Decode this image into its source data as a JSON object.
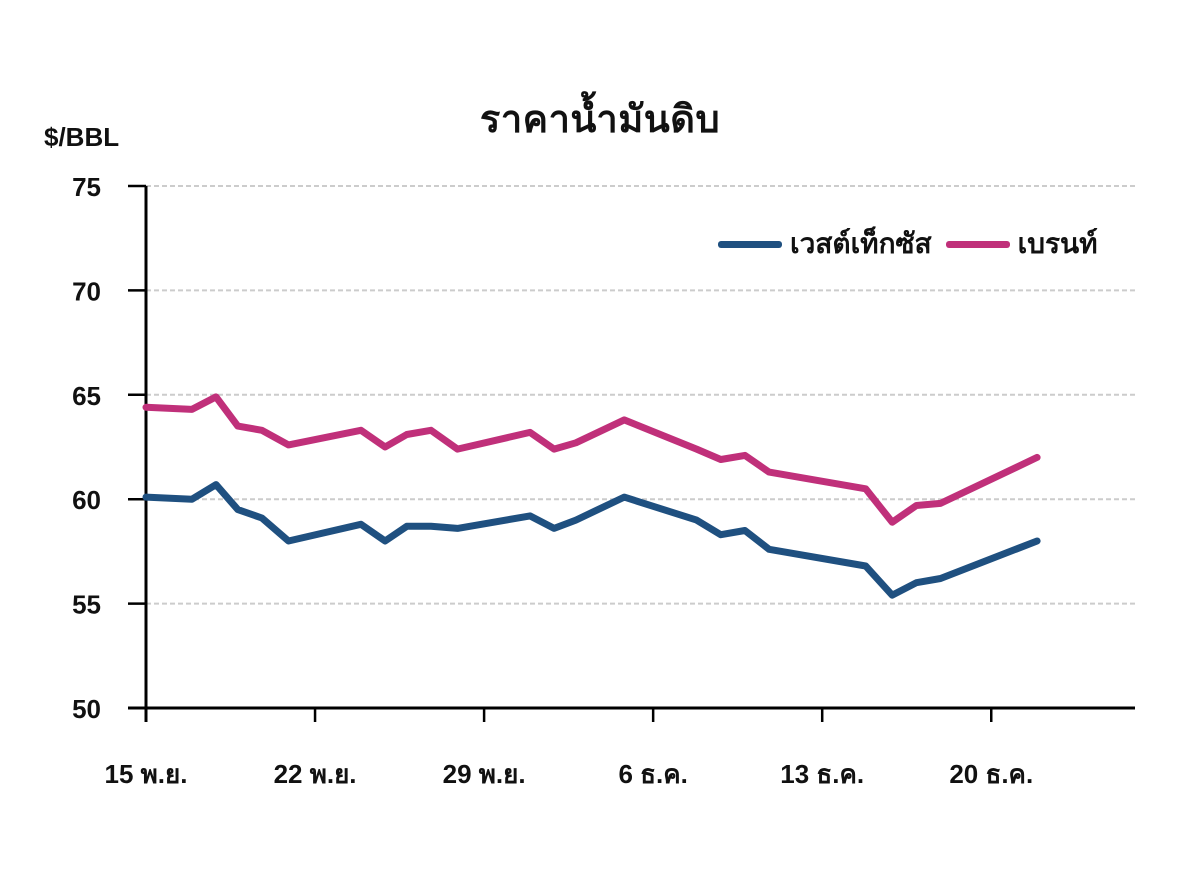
{
  "chart_data": {
    "type": "line",
    "title": "ราคาน้ำมันดิบ",
    "xlabel": "",
    "ylabel": "$/BBL",
    "ylim": [
      50,
      75
    ],
    "yticks": [
      50,
      55,
      60,
      65,
      70,
      75
    ],
    "grid": true,
    "legend_position": "top-right",
    "x_tick_labels": [
      "15 พ.ย.",
      "22 พ.ย.",
      "29 พ.ย.",
      "6 ธ.ค.",
      "13 ธ.ค.",
      "20 ธ.ค."
    ],
    "x": [
      0,
      1.9,
      2.9,
      3.8,
      4.8,
      5.9,
      8.9,
      9.9,
      10.8,
      11.8,
      12.9,
      15.9,
      16.9,
      17.8,
      19.8,
      22.8,
      23.8,
      24.8,
      25.8,
      29.8,
      30.9,
      31.9,
      32.9,
      36.9
    ],
    "x_unit": "days since 15 พ.ย.",
    "series": [
      {
        "name": "เวสต์เท็กซัส",
        "color": "#1f5080",
        "values": [
          60.1,
          60.0,
          60.7,
          59.5,
          59.1,
          58.0,
          58.8,
          58.0,
          58.7,
          58.7,
          58.6,
          59.2,
          58.6,
          59.0,
          60.1,
          59.0,
          58.3,
          58.5,
          57.6,
          56.8,
          55.4,
          56.0,
          56.2,
          58.0
        ]
      },
      {
        "name": "เบรนท์",
        "color": "#c0307a",
        "values": [
          64.4,
          64.3,
          64.9,
          63.5,
          63.3,
          62.6,
          63.3,
          62.5,
          63.1,
          63.3,
          62.4,
          63.2,
          62.4,
          62.7,
          63.8,
          62.4,
          61.9,
          62.1,
          61.3,
          60.5,
          58.9,
          59.7,
          59.8,
          62.0
        ]
      }
    ]
  },
  "colors": {
    "wti": "#1f5080",
    "brent": "#c0307a",
    "grid": "#cccccc",
    "axis": "#000000"
  }
}
